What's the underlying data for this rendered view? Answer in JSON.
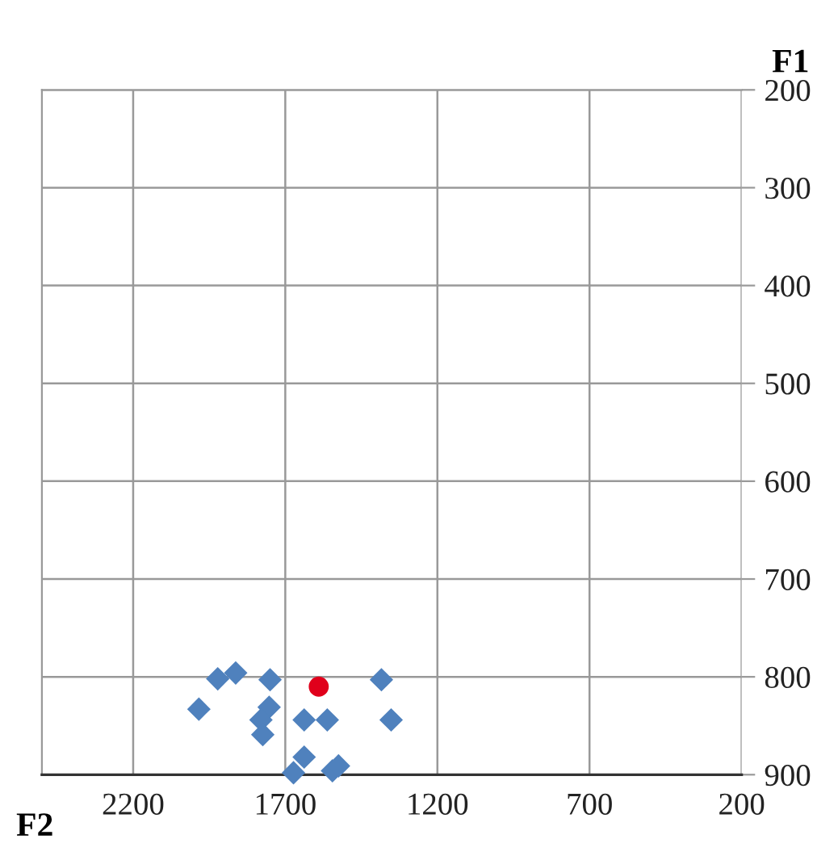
{
  "chart_data": {
    "type": "scatter",
    "xlabel": "F2",
    "ylabel": "F1",
    "xlim": [
      2500,
      200
    ],
    "xticks": [
      2200,
      1700,
      1200,
      700,
      200
    ],
    "ylim": [
      900,
      200
    ],
    "yticks": [
      200,
      300,
      400,
      500,
      600,
      700,
      800,
      900
    ],
    "grid": true,
    "series": [
      {
        "color": "#4f81bd",
        "marker": "diamond",
        "x": [
          1984,
          1922,
          1863,
          1750,
          1753,
          1780,
          1774,
          1638,
          1562,
          1384,
          1352,
          1638,
          1673,
          1545,
          1525
        ],
        "values": [
          833,
          802,
          796,
          803,
          831,
          844,
          859,
          844,
          844,
          803,
          844,
          882,
          898,
          896,
          891
        ]
      },
      {
        "color": "#e0001b",
        "marker": "circle",
        "x": [
          1590
        ],
        "values": [
          810
        ]
      }
    ]
  }
}
